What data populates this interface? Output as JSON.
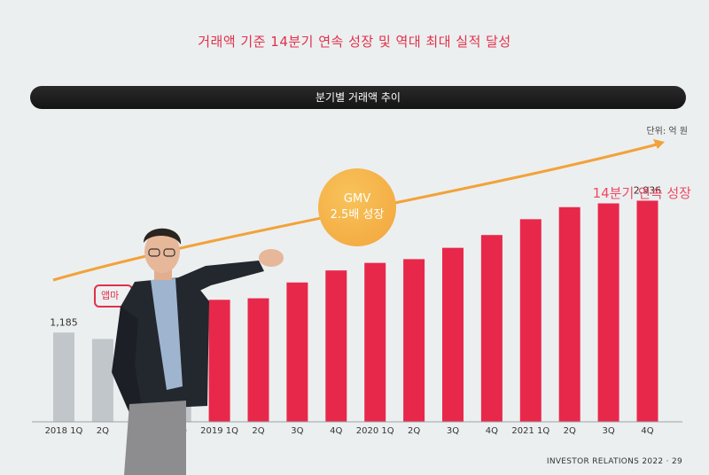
{
  "slide": {
    "headline": "거래액 기준 14분기 연속 성장 및 역대 최대 실적 달성",
    "section_title": "분기별 거래액 추이",
    "unit": "단위: 억 원",
    "growth_label": "14분기 연속 성장",
    "gmv_line1": "GMV",
    "gmv_line2": "2.5배 성장",
    "callout": "앱마",
    "footer": "INVESTOR RELATIONS 2022 · 29"
  },
  "chart_data": {
    "type": "bar",
    "categories": [
      "2018 1Q",
      "2Q",
      "3Q",
      "4Q",
      "2019 1Q",
      "2Q",
      "3Q",
      "4Q",
      "2020 1Q",
      "2Q",
      "3Q",
      "4Q",
      "2021 1Q",
      "2Q",
      "3Q",
      "4Q"
    ],
    "values": [
      1185,
      1100,
      1280,
      1420,
      1620,
      1640,
      1850,
      2010,
      2110,
      2160,
      2310,
      2480,
      2690,
      2850,
      2900,
      2936
    ],
    "data_labels": {
      "0": "1,185",
      "15": "2,936"
    },
    "ylim": [
      0,
      3200
    ],
    "colors": {
      "past": "#c1c6ca",
      "current": "#e8284a"
    }
  },
  "colors": {
    "accent": "#e0314b",
    "arrow": "#f2a23a",
    "suit": "#23272e",
    "trousers": "#8d8d8f"
  }
}
